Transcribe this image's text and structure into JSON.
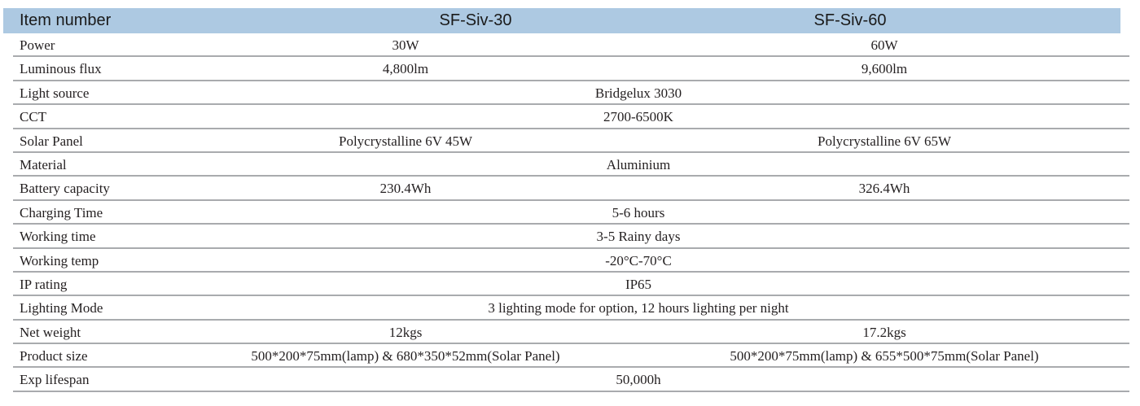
{
  "table": {
    "header": {
      "label": "Item number",
      "models": [
        "SF-Siv-30",
        "SF-Siv-60"
      ]
    },
    "colors": {
      "header_background": "#adc9e2",
      "row_divider": "#a9abae",
      "text": "#231f20"
    },
    "rows": [
      {
        "label": "Power",
        "values": [
          "30W",
          "60W"
        ],
        "merged": false
      },
      {
        "label": "Luminous flux",
        "values": [
          "4,800lm",
          "9,600lm"
        ],
        "merged": false
      },
      {
        "label": "Light source",
        "value": "Bridgelux 3030",
        "merged": true
      },
      {
        "label": "CCT",
        "value": "2700-6500K",
        "merged": true
      },
      {
        "label": "Solar Panel",
        "values": [
          "Polycrystalline 6V 45W",
          "Polycrystalline 6V 65W"
        ],
        "merged": false
      },
      {
        "label": "Material",
        "value": "Aluminium",
        "merged": true
      },
      {
        "label": "Battery capacity",
        "values": [
          "230.4Wh",
          "326.4Wh"
        ],
        "merged": false
      },
      {
        "label": "Charging Time",
        "value": "5-6 hours",
        "merged": true
      },
      {
        "label": "Working time",
        "value": "3-5 Rainy days",
        "merged": true
      },
      {
        "label": "Working temp",
        "value": "-20°C-70°C",
        "merged": true
      },
      {
        "label": "IP rating",
        "value": "IP65",
        "merged": true
      },
      {
        "label": "Lighting Mode",
        "value": "3 lighting mode for option, 12 hours lighting per night",
        "merged": true
      },
      {
        "label": "Net weight",
        "values": [
          "12kgs",
          "17.2kgs"
        ],
        "merged": false
      },
      {
        "label": "Product size",
        "values": [
          "500*200*75mm(lamp) & 680*350*52mm(Solar Panel)",
          "500*200*75mm(lamp) & 655*500*75mm(Solar Panel)"
        ],
        "merged": false
      },
      {
        "label": "Exp lifespan",
        "value": "50,000h",
        "merged": true
      }
    ]
  }
}
